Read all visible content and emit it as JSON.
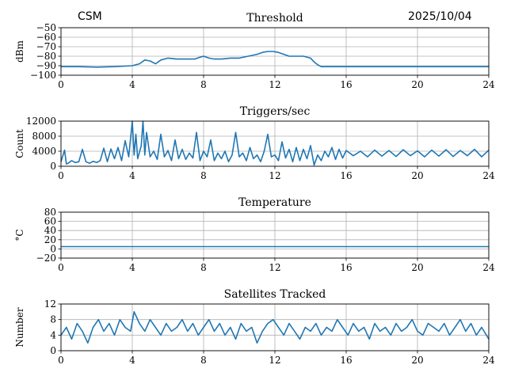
{
  "header": {
    "station": "CSM",
    "date": "2025/10/04"
  },
  "colors": {
    "series": "#1f77b4",
    "grid": "#b0b0b0",
    "axis": "#000000"
  },
  "chart_data": [
    {
      "type": "line",
      "title": "Threshold",
      "xlabel": "",
      "ylabel": "dBm",
      "xlim": [
        0,
        24
      ],
      "ylim": [
        -100,
        -50
      ],
      "xticks": [
        0,
        4,
        8,
        12,
        16,
        20,
        24
      ],
      "xtick_labels": [
        "0",
        "4",
        "8",
        "12",
        "16",
        "20",
        "24"
      ],
      "yticks": [
        -100,
        -90,
        -80,
        -70,
        -60,
        -50
      ],
      "ytick_labels": [
        "−100",
        "−90",
        "−80",
        "−70",
        "−60",
        "−50"
      ],
      "grid": true,
      "series": [
        {
          "name": "Threshold",
          "x": [
            0,
            1,
            2,
            3,
            4,
            4.4,
            4.7,
            5.0,
            5.3,
            5.6,
            6.0,
            6.5,
            7.0,
            7.5,
            7.8,
            8.0,
            8.3,
            8.6,
            9.0,
            9.5,
            10.0,
            10.5,
            11.0,
            11.3,
            11.6,
            11.9,
            12.2,
            12.5,
            12.8,
            13.2,
            13.6,
            14.0,
            14.2,
            14.4,
            14.6,
            15,
            16,
            17,
            18,
            19,
            20,
            21,
            22,
            23,
            24
          ],
          "y": [
            -91,
            -91,
            -91.5,
            -91,
            -90,
            -88,
            -84,
            -85,
            -88,
            -84,
            -82,
            -83,
            -83,
            -83,
            -81,
            -80,
            -82,
            -83,
            -83,
            -82,
            -82,
            -80,
            -78,
            -76,
            -75,
            -75,
            -76,
            -78,
            -80,
            -80,
            -80,
            -82,
            -86,
            -89,
            -91,
            -91,
            -91,
            -91,
            -91,
            -91,
            -91,
            -91,
            -91,
            -91,
            -91
          ]
        }
      ]
    },
    {
      "type": "line",
      "title": "Triggers/sec",
      "xlabel": "",
      "ylabel": "Count",
      "xlim": [
        0,
        24
      ],
      "ylim": [
        0,
        12000
      ],
      "xticks": [
        0,
        4,
        8,
        12,
        16,
        20,
        24
      ],
      "xtick_labels": [
        "0",
        "4",
        "8",
        "12",
        "16",
        "20",
        "24"
      ],
      "yticks": [
        0,
        4000,
        8000,
        12000
      ],
      "ytick_labels": [
        "0",
        "4000",
        "8000",
        "12000"
      ],
      "grid": true,
      "series": [
        {
          "name": "Triggers",
          "x": [
            0,
            0.2,
            0.3,
            0.4,
            0.6,
            0.8,
            1.0,
            1.2,
            1.4,
            1.6,
            1.8,
            2.0,
            2.2,
            2.4,
            2.6,
            2.8,
            3.0,
            3.2,
            3.4,
            3.6,
            3.8,
            4.0,
            4.1,
            4.2,
            4.3,
            4.5,
            4.6,
            4.7,
            4.8,
            5.0,
            5.2,
            5.4,
            5.6,
            5.8,
            6.0,
            6.2,
            6.4,
            6.6,
            6.8,
            7.0,
            7.2,
            7.4,
            7.6,
            7.8,
            8.0,
            8.2,
            8.4,
            8.6,
            8.8,
            9.0,
            9.2,
            9.4,
            9.6,
            9.8,
            10.0,
            10.2,
            10.4,
            10.6,
            10.8,
            11.0,
            11.2,
            11.4,
            11.6,
            11.8,
            12.0,
            12.2,
            12.4,
            12.6,
            12.8,
            13.0,
            13.2,
            13.4,
            13.6,
            13.8,
            14.0,
            14.2,
            14.4,
            14.6,
            14.8,
            15.0,
            15.2,
            15.4,
            15.6,
            15.8,
            16.0,
            16.4,
            16.8,
            17.2,
            17.6,
            18.0,
            18.4,
            18.8,
            19.2,
            19.6,
            20.0,
            20.4,
            20.8,
            21.2,
            21.6,
            22.0,
            22.4,
            22.8,
            23.2,
            23.6,
            24.0
          ],
          "y": [
            1200,
            4300,
            600,
            800,
            1500,
            1000,
            1200,
            4500,
            1200,
            800,
            1300,
            1000,
            1500,
            4800,
            1200,
            4600,
            2000,
            5000,
            1500,
            6800,
            2500,
            12000,
            3000,
            8500,
            2000,
            5500,
            12500,
            3000,
            9000,
            2500,
            4000,
            1800,
            8500,
            2500,
            4200,
            1500,
            7000,
            2000,
            4500,
            1800,
            3500,
            2200,
            9000,
            1500,
            4000,
            2500,
            7000,
            1500,
            3500,
            2000,
            4000,
            1200,
            3000,
            9000,
            2500,
            3500,
            1500,
            5000,
            2000,
            3000,
            1200,
            4000,
            8500,
            2500,
            3000,
            1500,
            6500,
            2200,
            4500,
            1200,
            5000,
            1500,
            4500,
            2000,
            5500,
            300,
            3000,
            1500,
            4000,
            2500,
            5000,
            1800,
            4500,
            2200,
            4200,
            2800,
            4000,
            2500,
            4300,
            2700,
            4200,
            2600,
            4400,
            2800,
            4100,
            2500,
            4300,
            2700,
            4400,
            2600,
            4200,
            2800,
            4500,
            2500,
            4300
          ]
        }
      ]
    },
    {
      "type": "line",
      "title": "Temperature",
      "xlabel": "",
      "ylabel": "°C",
      "xlim": [
        0,
        24
      ],
      "ylim": [
        -20,
        80
      ],
      "xticks": [
        0,
        4,
        8,
        12,
        16,
        20,
        24
      ],
      "xtick_labels": [
        "0",
        "4",
        "8",
        "12",
        "16",
        "20",
        "24"
      ],
      "yticks": [
        -20,
        0,
        20,
        40,
        60,
        80
      ],
      "ytick_labels": [
        "−20",
        "0",
        "20",
        "40",
        "60",
        "80"
      ],
      "grid": true,
      "series": [
        {
          "name": "Temperature",
          "x": [
            0,
            24
          ],
          "y": [
            5,
            5
          ]
        }
      ]
    },
    {
      "type": "line",
      "title": "Satellites Tracked",
      "xlabel": "",
      "ylabel": "Number",
      "xlim": [
        0,
        24
      ],
      "ylim": [
        0,
        12
      ],
      "xticks": [
        0,
        4,
        8,
        12,
        16,
        20,
        24
      ],
      "xtick_labels": [
        "0",
        "4",
        "8",
        "12",
        "16",
        "20",
        "24"
      ],
      "yticks": [
        0,
        4,
        8,
        12
      ],
      "ytick_labels": [
        "0",
        "4",
        "8",
        "12"
      ],
      "grid": true,
      "series": [
        {
          "name": "Satellites",
          "x": [
            0,
            0.3,
            0.6,
            0.9,
            1.2,
            1.5,
            1.8,
            2.1,
            2.4,
            2.7,
            3.0,
            3.3,
            3.6,
            3.9,
            4.1,
            4.4,
            4.7,
            5.0,
            5.3,
            5.6,
            5.9,
            6.2,
            6.5,
            6.8,
            7.1,
            7.4,
            7.7,
            8.0,
            8.3,
            8.6,
            8.9,
            9.2,
            9.5,
            9.8,
            10.1,
            10.4,
            10.7,
            11.0,
            11.3,
            11.6,
            11.9,
            12.2,
            12.5,
            12.8,
            13.1,
            13.4,
            13.7,
            14.0,
            14.3,
            14.6,
            14.9,
            15.2,
            15.5,
            15.8,
            16.1,
            16.4,
            16.7,
            17.0,
            17.3,
            17.6,
            17.9,
            18.2,
            18.5,
            18.8,
            19.1,
            19.4,
            19.7,
            20.0,
            20.3,
            20.6,
            20.9,
            21.2,
            21.5,
            21.8,
            22.1,
            22.4,
            22.7,
            23.0,
            23.3,
            23.6,
            24.0
          ],
          "y": [
            4,
            6,
            3,
            7,
            5,
            2,
            6,
            8,
            5,
            7,
            4,
            8,
            6,
            5,
            10,
            7,
            5,
            8,
            6,
            4,
            7,
            5,
            6,
            8,
            5,
            7,
            4,
            6,
            8,
            5,
            7,
            4,
            6,
            3,
            7,
            5,
            6,
            2,
            5,
            7,
            8,
            6,
            4,
            7,
            5,
            3,
            6,
            5,
            7,
            4,
            6,
            5,
            8,
            6,
            4,
            7,
            5,
            6,
            3,
            7,
            5,
            6,
            4,
            7,
            5,
            6,
            8,
            5,
            4,
            7,
            6,
            5,
            7,
            4,
            6,
            8,
            5,
            7,
            4,
            6,
            3
          ]
        }
      ]
    }
  ]
}
